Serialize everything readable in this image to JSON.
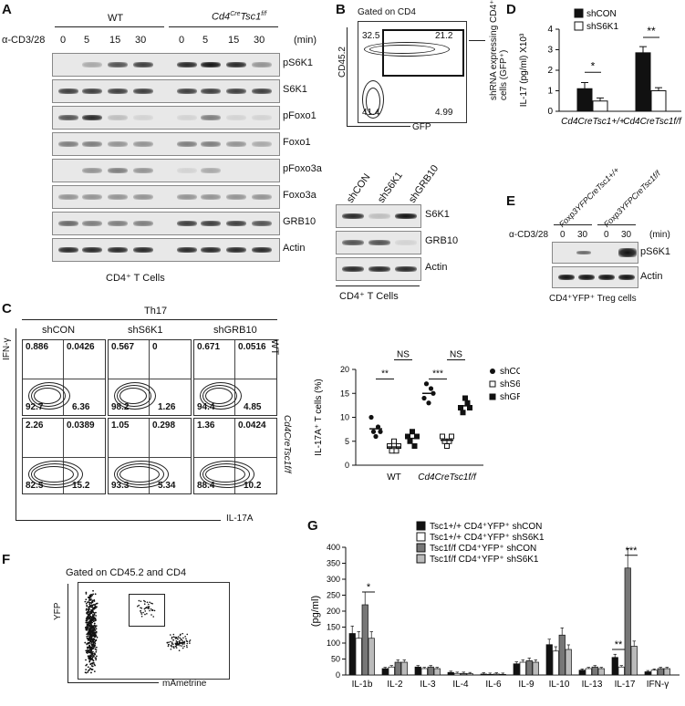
{
  "panelA": {
    "letter": "A",
    "wt": "WT",
    "cd4": "Cd4",
    "cre": "Cre",
    "tsc": "Tsc1",
    "ff": "f/f",
    "stim": "α-CD3/28",
    "times": [
      "0",
      "5",
      "15",
      "30",
      "0",
      "5",
      "15",
      "30"
    ],
    "unit": "(min)",
    "rows": [
      "pS6K1",
      "S6K1",
      "pFoxo1",
      "Foxo1",
      "pFoxo3a",
      "Foxo3a",
      "GRB10",
      "Actin"
    ],
    "footer": "CD4⁺ T Cells"
  },
  "panelB": {
    "letter": "B",
    "gate": "Gated on CD4",
    "yaxis": "CD45.2",
    "xaxis": "GFP",
    "q": [
      "32.5",
      "21.2",
      "41.4",
      "4.99"
    ],
    "side": "shRNA expressing CD4⁺ T cells (GFP⁺)",
    "lanes": [
      "shCON",
      "shS6K1",
      "shGRB10"
    ],
    "rows": [
      "S6K1",
      "GRB10",
      "Actin"
    ],
    "footer": "CD4⁺ T Cells"
  },
  "panelC": {
    "letter": "C",
    "th": "Th17",
    "cols": [
      "shCON",
      "shS6K1",
      "shGRB10"
    ],
    "yaxis": "IFN-γ",
    "xaxis": "IL-17A",
    "wt": "WT",
    "ko": "Cd4CreTsc1f/f",
    "top": [
      [
        "0.886",
        "0.0426",
        "92.7",
        "6.36"
      ],
      [
        "0.567",
        "0",
        "98.2",
        "1.26"
      ],
      [
        "0.671",
        "0.0516",
        "94.4",
        "4.85"
      ]
    ],
    "bottom": [
      [
        "2.26",
        "0.0389",
        "82.5",
        "15.2"
      ],
      [
        "1.05",
        "0.298",
        "93.3",
        "5.34"
      ],
      [
        "1.36",
        "0.0424",
        "88.4",
        "10.2"
      ]
    ],
    "scatter_ylabel": "IL-17A⁺ T cells (%)",
    "scatter_x": [
      "WT",
      "Cd4CreTsc1f/f"
    ],
    "sig": [
      "**",
      "NS",
      "***",
      "NS"
    ],
    "legend": [
      "shCON",
      "shS6K1",
      "shGRB10"
    ]
  },
  "panelD": {
    "letter": "D",
    "legend": [
      "shCON",
      "shS6K1"
    ],
    "ylabel": "IL-17 (pg/ml) X10³",
    "x": [
      "Cd4CreTsc1+/+",
      "Cd4CreTsc1f/f"
    ],
    "sig": [
      "*",
      "**"
    ]
  },
  "panelE": {
    "letter": "E",
    "lanes": [
      "Foxp3YFPCreTsc1+/+",
      "Foxp3YFPCreTsc1f/f"
    ],
    "stim": "α-CD3/28",
    "times": [
      "0",
      "30",
      "0",
      "30"
    ],
    "unit": "(min)",
    "rows": [
      "pS6K1",
      "Actin"
    ],
    "footer": "CD4⁺YFP⁺ Treg cells"
  },
  "panelF": {
    "letter": "F",
    "gate": "Gated on CD45.2 and CD4",
    "yaxis": "YFP",
    "xaxis": "mAmetrine"
  },
  "panelG": {
    "letter": "G",
    "ylabel": "(pg/ml)",
    "sig": [
      "*",
      "**",
      "***"
    ],
    "legend": [
      "Tsc1+/+ CD4⁺YFP⁺ shCON",
      "Tsc1+/+ CD4⁺YFP⁺ shS6K1",
      "Tsc1f/f CD4⁺YFP⁺ shCON",
      "Tsc1f/f CD4⁺YFP⁺ shS6K1"
    ]
  },
  "chart_data": [
    {
      "type": "scatter",
      "ylabel": "IL-17A⁺ T cells (%)",
      "ylim": [
        0,
        20
      ],
      "categories": [
        "WT",
        "Cd4CreTsc1f/f"
      ],
      "series": [
        {
          "name": "shCON",
          "values": [
            [
              10,
              7,
              6,
              8,
              7
            ],
            [
              14,
              17,
              13,
              16,
              15
            ]
          ]
        },
        {
          "name": "shS6K1",
          "values": [
            [
              4,
              3,
              5,
              3,
              4
            ],
            [
              6,
              5,
              4,
              5,
              6
            ]
          ]
        },
        {
          "name": "shGRB10",
          "values": [
            [
              6,
              5,
              7,
              4,
              6
            ],
            [
              12,
              11,
              14,
              13,
              12
            ]
          ]
        }
      ]
    },
    {
      "type": "bar",
      "ylabel": "IL-17 (pg/ml) X10³",
      "ylim": [
        0,
        4
      ],
      "categories": [
        "Cd4CreTsc1+/+",
        "Cd4CreTsc1f/f"
      ],
      "series": [
        {
          "name": "shCON",
          "values": [
            1.1,
            2.85
          ],
          "errors": [
            0.3,
            0.3
          ]
        },
        {
          "name": "shS6K1",
          "values": [
            0.5,
            1.0
          ],
          "errors": [
            0.15,
            0.15
          ]
        }
      ]
    },
    {
      "type": "bar",
      "ylabel": "(pg/ml)",
      "ylim": [
        0,
        400
      ],
      "categories": [
        "IL-1b",
        "IL-2",
        "IL-3",
        "IL-4",
        "IL-6",
        "IL-9",
        "IL-10",
        "IL-13",
        "IL-17",
        "IFN-γ"
      ],
      "series": [
        {
          "name": "Tsc1+/+ CD4+YFP+ shCON",
          "values": [
            130,
            20,
            25,
            8,
            3,
            35,
            95,
            15,
            55,
            10
          ]
        },
        {
          "name": "Tsc1+/+ CD4+YFP+ shS6K1",
          "values": [
            115,
            25,
            20,
            5,
            2,
            40,
            75,
            20,
            25,
            15
          ]
        },
        {
          "name": "Tsc1f/f CD4+YFP+ shCON",
          "values": [
            220,
            40,
            25,
            5,
            3,
            45,
            125,
            25,
            335,
            20
          ]
        },
        {
          "name": "Tsc1f/f CD4+YFP+ shS6K1",
          "values": [
            115,
            40,
            20,
            4,
            2,
            40,
            80,
            20,
            90,
            20
          ]
        }
      ]
    }
  ]
}
